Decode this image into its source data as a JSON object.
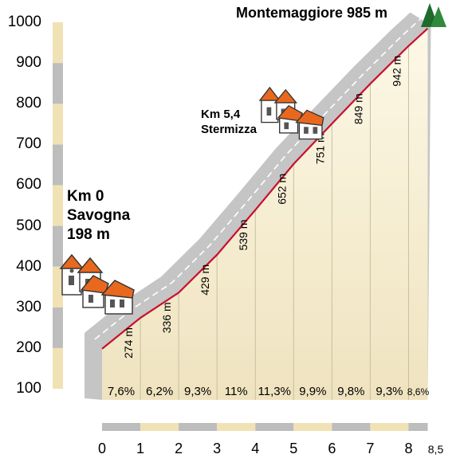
{
  "chart_data": {
    "type": "area",
    "title": "Montemaggiore 985 m",
    "start_label": [
      "Km 0",
      "Savogna",
      "198 m"
    ],
    "mid_label": [
      "Km 5,4",
      "Stermizza"
    ],
    "x_tick_labels": [
      "0",
      "1",
      "2",
      "3",
      "4",
      "5",
      "6",
      "7",
      "8",
      "8,5"
    ],
    "x_ticks": [
      0,
      1,
      2,
      3,
      4,
      5,
      6,
      7,
      8,
      8.5
    ],
    "y_tick_labels": [
      "100",
      "200",
      "300",
      "400",
      "500",
      "600",
      "700",
      "800",
      "900",
      "1000"
    ],
    "ylim": [
      100,
      1000
    ],
    "xlim": [
      0,
      8.5
    ],
    "x_unit": "km",
    "y_unit": "m",
    "profile": {
      "x": [
        0,
        1,
        2,
        3,
        4,
        5,
        6,
        7,
        8,
        8.5
      ],
      "y": [
        198,
        274,
        336,
        429,
        539,
        652,
        751,
        849,
        942,
        985
      ]
    },
    "elevation_labels": [
      "274 m",
      "336 m",
      "429 m",
      "539 m",
      "652 m",
      "751 m",
      "849 m",
      "942 m"
    ],
    "gradients": [
      "7,6%",
      "6,2%",
      "9,3%",
      "11%",
      "11,3%",
      "9,9%",
      "9,8%",
      "9,3%",
      "8,6%"
    ]
  },
  "colors": {
    "profile_line": "#c8102e",
    "fill_top": "#fdf8e6",
    "fill_bottom": "#efe3bf",
    "band": "#c5c5c5",
    "scale_beige": "#f0e2b4",
    "scale_grey": "#bdbdbd",
    "tree": "#1f6b2e",
    "roof": "#e8681e"
  },
  "icons": [
    "village-houses-icon",
    "village-houses-icon",
    "pine-trees-icon"
  ]
}
